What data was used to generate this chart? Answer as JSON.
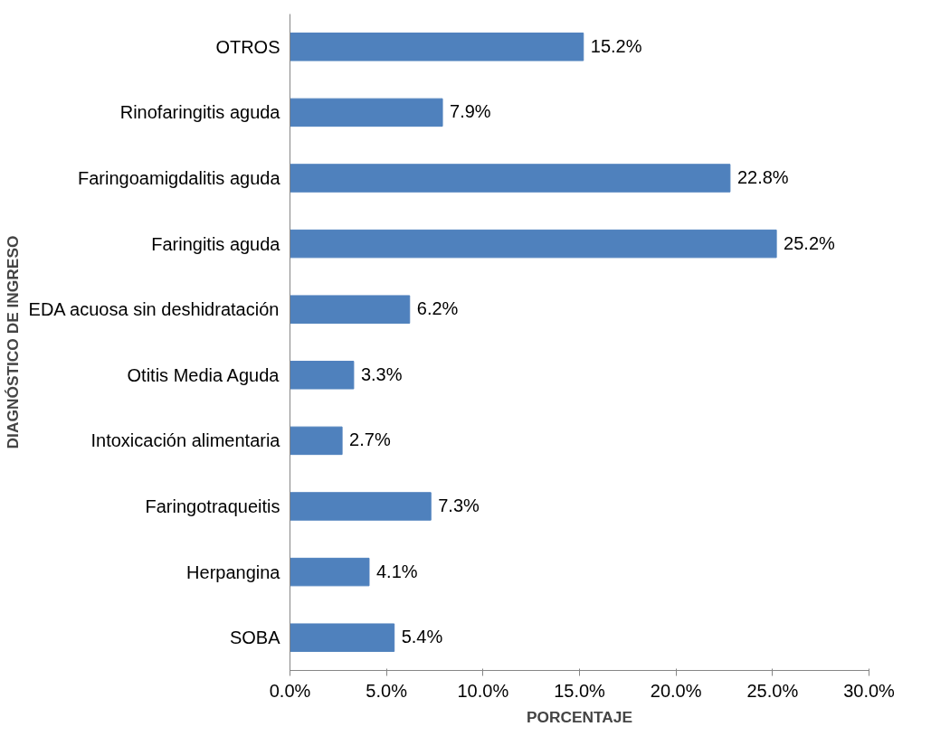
{
  "chart_data": {
    "type": "bar",
    "orientation": "horizontal",
    "xlabel": "PORCENTAJE",
    "ylabel": "DIAGNÓSTICO DE INGRESO",
    "categories": [
      "OTROS",
      "Rinofaringitis aguda",
      "Faringoamigdalitis aguda",
      "Faringitis aguda",
      "EDA acuosa sin deshidratación",
      "Otitis Media Aguda",
      "Intoxicación alimentaria",
      "Faringotraqueitis",
      "Herpangina",
      "SOBA"
    ],
    "values": [
      15.2,
      7.9,
      22.8,
      25.2,
      6.2,
      3.3,
      2.7,
      7.3,
      4.1,
      5.4
    ],
    "value_labels": [
      "15.2%",
      "7.9%",
      "22.8%",
      "25.2%",
      "6.2%",
      "3.3%",
      "2.7%",
      "7.3%",
      "4.1%",
      "5.4%"
    ],
    "color": "#4f81bd",
    "xlim": [
      0,
      30
    ],
    "xticks": [
      {
        "value": 0,
        "label": "0.0%"
      },
      {
        "value": 5,
        "label": "5.0%"
      },
      {
        "value": 10,
        "label": "10.0%"
      },
      {
        "value": 15,
        "label": "15.0%"
      },
      {
        "value": 20,
        "label": "20.0%"
      },
      {
        "value": 25,
        "label": "25.0%"
      },
      {
        "value": 30,
        "label": "30.0%"
      }
    ],
    "grid": false
  }
}
